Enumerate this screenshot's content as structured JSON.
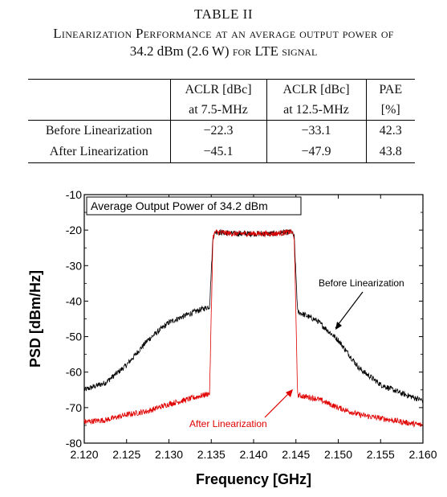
{
  "caption": {
    "line1": "TABLE II",
    "line2": "Linearization Performance at an average output power of",
    "line3_main": "34.2 dBm (2.6 W)",
    "line3_sc": "for LTE signal"
  },
  "table": {
    "headers": [
      [
        "ACLR [dBc]",
        "at 7.5-MHz"
      ],
      [
        "ACLR [dBc]",
        "at 12.5-MHz"
      ],
      [
        "PAE",
        "[%]"
      ]
    ],
    "rows": [
      {
        "label": "Before Linearization",
        "aclr_7_5": "−22.3",
        "aclr_12_5": "−33.1",
        "pae": "42.3"
      },
      {
        "label": "After Linearization",
        "aclr_7_5": "−45.1",
        "aclr_12_5": "−47.9",
        "pae": "43.8"
      }
    ]
  },
  "chart_data": {
    "type": "line",
    "title": "Average Output Power of 34.2 dBm",
    "xlabel": "Frequency [GHz]",
    "ylabel": "PSD [dBm/Hz]",
    "xlim": [
      2.12,
      2.16
    ],
    "ylim": [
      -80,
      -10
    ],
    "x_ticks": [
      "2.120",
      "2.125",
      "2.130",
      "2.135",
      "2.140",
      "2.145",
      "2.150",
      "2.155",
      "2.160"
    ],
    "y_ticks": [
      "-10",
      "-20",
      "-30",
      "-40",
      "-50",
      "-60",
      "-70",
      "-80"
    ],
    "colors": {
      "before": "#000000",
      "after": "#e00000"
    },
    "series": [
      {
        "name": "Before Linearization",
        "x": [
          2.12,
          2.1225,
          2.125,
          2.1275,
          2.13,
          2.1325,
          2.1348,
          2.1352,
          2.1355,
          2.1375,
          2.14,
          2.1425,
          2.1445,
          2.1448,
          2.1452,
          2.1475,
          2.15,
          2.1525,
          2.155,
          2.1575,
          2.16
        ],
        "y": [
          -65,
          -63,
          -58,
          -51,
          -46,
          -43.5,
          -41.5,
          -22,
          -20.5,
          -21,
          -21,
          -21,
          -20.5,
          -22,
          -43,
          -45.5,
          -51,
          -59,
          -63.5,
          -66,
          -68
        ]
      },
      {
        "name": "After Linearization",
        "x": [
          2.12,
          2.1225,
          2.125,
          2.1275,
          2.13,
          2.1325,
          2.1348,
          2.1352,
          2.1355,
          2.1375,
          2.14,
          2.1425,
          2.1445,
          2.1448,
          2.1452,
          2.1475,
          2.15,
          2.1525,
          2.155,
          2.1575,
          2.16
        ],
        "y": [
          -74,
          -73.5,
          -72,
          -71,
          -69,
          -67.5,
          -66,
          -22,
          -20.5,
          -21,
          -21,
          -21,
          -20.5,
          -22,
          -66.5,
          -67.5,
          -70,
          -72,
          -73,
          -74,
          -75
        ]
      }
    ],
    "annotations": [
      {
        "text": "Before Linearization",
        "color": "#000000"
      },
      {
        "text": "After Linearization",
        "color": "#e00000"
      }
    ]
  }
}
